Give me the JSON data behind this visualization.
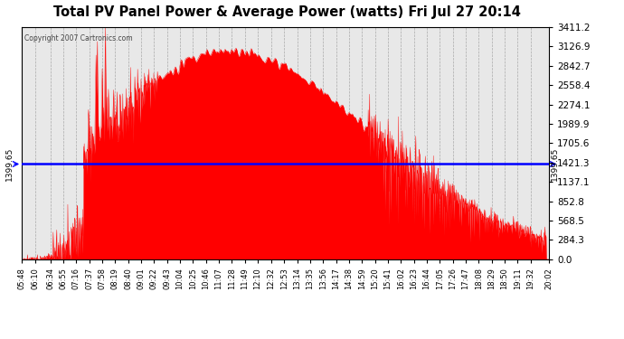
{
  "title": "Total PV Panel Power & Average Power (watts) Fri Jul 27 20:14",
  "copyright": "Copyright 2007 Cartronics.com",
  "avg_power": 1399.65,
  "y_max": 3411.2,
  "y_min": 0.0,
  "y_ticks": [
    0.0,
    284.3,
    568.5,
    852.8,
    1137.1,
    1421.3,
    1705.6,
    1989.9,
    2274.1,
    2558.4,
    2842.7,
    3126.9,
    3411.2
  ],
  "fill_color": "#FF0000",
  "line_color": "#0000FF",
  "bg_color": "#FFFFFF",
  "plot_bg_color": "#E8E8E8",
  "grid_color": "#AAAAAA",
  "x_labels": [
    "05:48",
    "06:10",
    "06:34",
    "06:55",
    "07:16",
    "07:37",
    "07:58",
    "08:19",
    "08:40",
    "09:01",
    "09:22",
    "09:43",
    "10:04",
    "10:25",
    "10:46",
    "11:07",
    "11:28",
    "11:49",
    "12:10",
    "12:32",
    "12:53",
    "13:14",
    "13:35",
    "13:56",
    "14:17",
    "14:38",
    "14:59",
    "15:20",
    "15:41",
    "16:02",
    "16:23",
    "16:44",
    "17:05",
    "17:26",
    "17:47",
    "18:08",
    "18:29",
    "18:50",
    "19:11",
    "19:32",
    "20:02"
  ]
}
